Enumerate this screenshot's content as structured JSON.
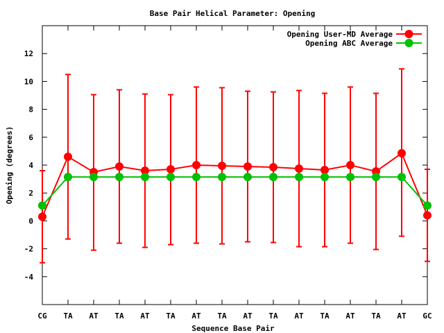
{
  "chart_data": {
    "type": "line",
    "title": "Base Pair Helical Parameter: Opening",
    "xlabel": "Sequence Base Pair",
    "ylabel": "Opening (degrees)",
    "categories": [
      "CG",
      "TA",
      "AT",
      "TA",
      "AT",
      "TA",
      "AT",
      "TA",
      "AT",
      "TA",
      "AT",
      "TA",
      "AT",
      "TA",
      "AT",
      "GC"
    ],
    "ylim": [
      -6,
      14
    ],
    "yticks": [
      -4,
      -2,
      0,
      2,
      4,
      6,
      8,
      10,
      12
    ],
    "grid": false,
    "legend_position": "top-right",
    "series": [
      {
        "name": "Opening User-MD Average",
        "color": "#ff0000",
        "values": [
          0.3,
          4.6,
          3.5,
          3.9,
          3.6,
          3.7,
          4.0,
          3.95,
          3.9,
          3.85,
          3.75,
          3.65,
          4.0,
          3.55,
          4.85,
          0.4
        ],
        "error_low": [
          -3.0,
          -1.3,
          -2.1,
          -1.6,
          -1.9,
          -1.7,
          -1.6,
          -1.65,
          -1.5,
          -1.55,
          -1.85,
          -1.85,
          -1.6,
          -2.05,
          -1.1,
          -2.9
        ],
        "error_high": [
          3.6,
          10.5,
          9.05,
          9.4,
          9.1,
          9.05,
          9.6,
          9.55,
          9.3,
          9.25,
          9.35,
          9.15,
          9.6,
          9.15,
          10.9,
          3.7
        ]
      },
      {
        "name": "Opening ABC Average",
        "color": "#00c000",
        "values": [
          1.1,
          3.15,
          3.15,
          3.15,
          3.15,
          3.15,
          3.15,
          3.15,
          3.15,
          3.15,
          3.15,
          3.15,
          3.15,
          3.15,
          3.15,
          1.1
        ]
      }
    ]
  }
}
